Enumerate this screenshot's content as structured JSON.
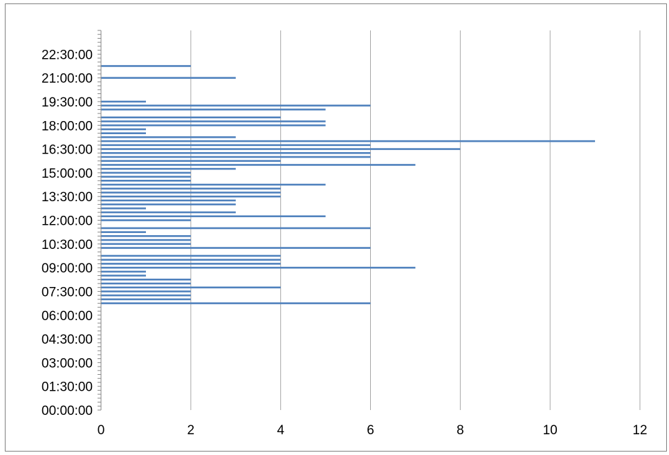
{
  "colors": {
    "bar": "#4f81bd",
    "grid": "#a6a6a6",
    "axis": "#868686",
    "frame": "#808080",
    "text": "#000000"
  },
  "chart_data": {
    "type": "bar",
    "orientation": "horizontal",
    "title": "",
    "xlabel": "",
    "ylabel": "",
    "grid": "vertical major gridlines",
    "legend": "none",
    "xlim": [
      0,
      12
    ],
    "x_ticks": [
      "0",
      "2",
      "4",
      "6",
      "8",
      "10",
      "12"
    ],
    "y_range_minutes": [
      0,
      1440
    ],
    "y_tick_labels": [
      "00:00:00",
      "01:30:00",
      "03:00:00",
      "04:30:00",
      "06:00:00",
      "07:30:00",
      "09:00:00",
      "10:30:00",
      "12:00:00",
      "13:30:00",
      "15:00:00",
      "16:30:00",
      "18:00:00",
      "19:30:00",
      "21:00:00",
      "22:30:00"
    ],
    "categories": [
      "06:45",
      "07:00",
      "07:15",
      "07:30",
      "07:45",
      "08:00",
      "08:15",
      "08:30",
      "08:45",
      "09:00",
      "09:15",
      "09:30",
      "09:45",
      "10:15",
      "10:30",
      "10:45",
      "11:00",
      "11:15",
      "11:30",
      "12:00",
      "12:15",
      "12:30",
      "12:45",
      "13:00",
      "13:15",
      "13:30",
      "13:45",
      "14:00",
      "14:15",
      "14:30",
      "14:45",
      "15:00",
      "15:15",
      "15:30",
      "15:45",
      "16:00",
      "16:15",
      "16:30",
      "16:45",
      "17:00",
      "17:15",
      "17:30",
      "17:45",
      "18:00",
      "18:15",
      "18:30",
      "19:00",
      "19:15",
      "19:30",
      "21:00",
      "21:45"
    ],
    "values": [
      6,
      2,
      2,
      2,
      4,
      2,
      2,
      1,
      1,
      7,
      4,
      4,
      4,
      6,
      2,
      2,
      2,
      1,
      6,
      2,
      5,
      3,
      1,
      3,
      3,
      4,
      4,
      4,
      5,
      2,
      2,
      2,
      3,
      7,
      4,
      6,
      6,
      8,
      6,
      11,
      3,
      1,
      1,
      5,
      5,
      4,
      5,
      6,
      1,
      3,
      2
    ]
  }
}
